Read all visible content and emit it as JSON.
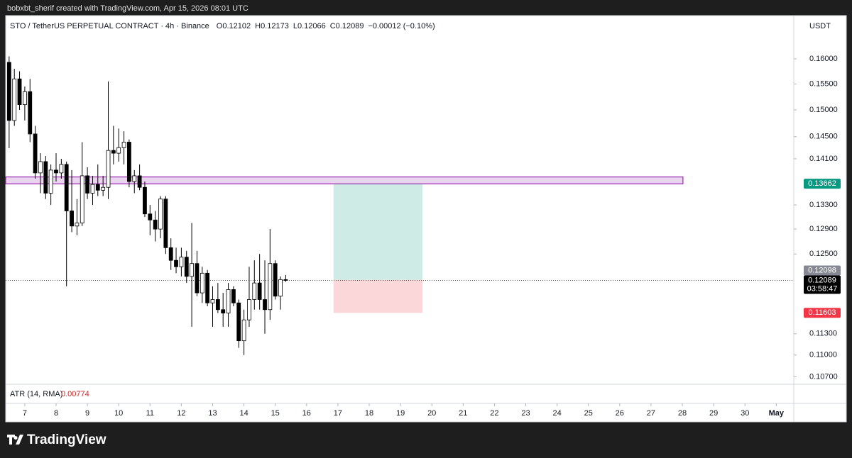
{
  "credit": "bobxbt_sherif created with TradingView.com, Apr 15, 2026 08:01 UTC",
  "brand": "TradingView",
  "chart_data": {
    "type": "candlestick",
    "title": "STO / TetherUS PERPETUAL CONTRACT · 4h · Binance",
    "legend": [
      "O0.12102",
      "H0.12173",
      "L0.12066",
      "C0.12089",
      "−0.00012 (−0.10%)"
    ],
    "currency": "USDT",
    "log_scale": true,
    "up_color": "#ffffff",
    "down_color": "#000000",
    "x": [
      6.5,
      6.667,
      6.833,
      7,
      7.167,
      7.333,
      7.5,
      7.667,
      7.833,
      8,
      8.167,
      8.333,
      8.5,
      8.667,
      8.833,
      9,
      9.167,
      9.333,
      9.5,
      9.667,
      9.833,
      10,
      10.167,
      10.333,
      10.5,
      10.667,
      10.833,
      11,
      11.167,
      11.333,
      11.5,
      11.667,
      11.833,
      12,
      12.167,
      12.333,
      12.5,
      12.667,
      12.833,
      13,
      13.167,
      13.333,
      13.5,
      13.667,
      13.833,
      14,
      14.167,
      14.333,
      14.5,
      14.667,
      14.833,
      15,
      15.167,
      15.333
    ],
    "open": [
      0.1593,
      0.148,
      0.156,
      0.151,
      0.1535,
      0.1455,
      0.1385,
      0.1405,
      0.135,
      0.139,
      0.1385,
      0.14,
      0.132,
      0.1295,
      0.13,
      0.138,
      0.135,
      0.1365,
      0.1355,
      0.136,
      0.1425,
      0.142,
      0.143,
      0.144,
      0.137,
      0.138,
      0.136,
      0.1315,
      0.1305,
      0.129,
      0.134,
      0.126,
      0.124,
      0.123,
      0.1245,
      0.1215,
      0.1235,
      0.119,
      0.122,
      0.1175,
      0.118,
      0.1165,
      0.116,
      0.1195,
      0.1175,
      0.112,
      0.115,
      0.118,
      0.1205,
      0.118,
      0.1165,
      0.1235,
      0.1185,
      0.12102
    ],
    "high": [
      0.1605,
      0.158,
      0.1575,
      0.1545,
      0.156,
      0.147,
      0.142,
      0.1415,
      0.14,
      0.142,
      0.141,
      0.1405,
      0.139,
      0.134,
      0.144,
      0.1395,
      0.138,
      0.14,
      0.138,
      0.1555,
      0.147,
      0.1465,
      0.146,
      0.1445,
      0.139,
      0.14,
      0.137,
      0.133,
      0.132,
      0.1345,
      0.1345,
      0.1275,
      0.126,
      0.126,
      0.1255,
      0.13,
      0.1255,
      0.123,
      0.1225,
      0.12,
      0.1205,
      0.119,
      0.1205,
      0.12,
      0.118,
      0.1165,
      0.123,
      0.124,
      0.125,
      0.124,
      0.129,
      0.124,
      0.1215,
      0.12173
    ],
    "low": [
      0.1429,
      0.147,
      0.15,
      0.148,
      0.144,
      0.1375,
      0.135,
      0.134,
      0.133,
      0.137,
      0.1375,
      0.12,
      0.1285,
      0.128,
      0.1295,
      0.134,
      0.133,
      0.1345,
      0.1345,
      0.134,
      0.14,
      0.1405,
      0.14,
      0.136,
      0.135,
      0.1355,
      0.131,
      0.128,
      0.127,
      0.1275,
      0.125,
      0.1225,
      0.122,
      0.1215,
      0.1205,
      0.114,
      0.1185,
      0.1175,
      0.117,
      0.114,
      0.116,
      0.114,
      0.114,
      0.117,
      0.111,
      0.11,
      0.114,
      0.1165,
      0.1165,
      0.113,
      0.115,
      0.118,
      0.1165,
      0.12066
    ],
    "close": [
      0.148,
      0.156,
      0.151,
      0.1535,
      0.1455,
      0.1385,
      0.1405,
      0.135,
      0.139,
      0.1385,
      0.14,
      0.132,
      0.1295,
      0.13,
      0.138,
      0.135,
      0.1365,
      0.1355,
      0.136,
      0.1425,
      0.142,
      0.143,
      0.144,
      0.137,
      0.138,
      0.136,
      0.1315,
      0.1305,
      0.129,
      0.134,
      0.126,
      0.124,
      0.123,
      0.1245,
      0.1215,
      0.1235,
      0.119,
      0.122,
      0.1175,
      0.118,
      0.1165,
      0.116,
      0.1195,
      0.1175,
      0.112,
      0.115,
      0.118,
      0.1205,
      0.118,
      0.1165,
      0.1235,
      0.1185,
      0.12102,
      0.12089
    ],
    "xlim": [
      6.39,
      31.56
    ],
    "ylim": [
      0.1061,
      0.1687
    ],
    "xticks": [
      7,
      8,
      9,
      10,
      11,
      12,
      13,
      14,
      15,
      16,
      17,
      18,
      19,
      20,
      21,
      22,
      23,
      24,
      25,
      26,
      27,
      28,
      29,
      30,
      {
        "value": 31,
        "label": "May"
      }
    ],
    "yticks": [
      {
        "value": 0.16,
        "label": "0.16000"
      },
      {
        "value": 0.155,
        "label": "0.15500"
      },
      {
        "value": 0.15,
        "label": "0.15000"
      },
      {
        "value": 0.145,
        "label": "0.14500"
      },
      {
        "value": 0.141,
        "label": "0.14100"
      },
      {
        "value": 0.133,
        "label": "0.13300"
      },
      {
        "value": 0.129,
        "label": "0.12900"
      },
      {
        "value": 0.125,
        "label": "0.12500"
      },
      {
        "value": 0.113,
        "label": "0.11300"
      },
      {
        "value": 0.11,
        "label": "0.11000"
      },
      {
        "value": 0.107,
        "label": "0.10700"
      }
    ],
    "zone": {
      "x": [
        6.39,
        28.02
      ],
      "y": [
        0.1366,
        0.1378
      ],
      "color": "#9c27b0"
    },
    "position": {
      "x": [
        16.86,
        19.7
      ],
      "entry": 0.12098,
      "target": 0.13662,
      "stop": 0.11603,
      "profit_color": "#089981",
      "loss_color": "#f23645"
    },
    "last_price": 0.12089,
    "countdown": "03:58:47",
    "indicator": {
      "name": "ATR (14, RMA)",
      "value": 0.00774,
      "color": "#c62828"
    }
  }
}
